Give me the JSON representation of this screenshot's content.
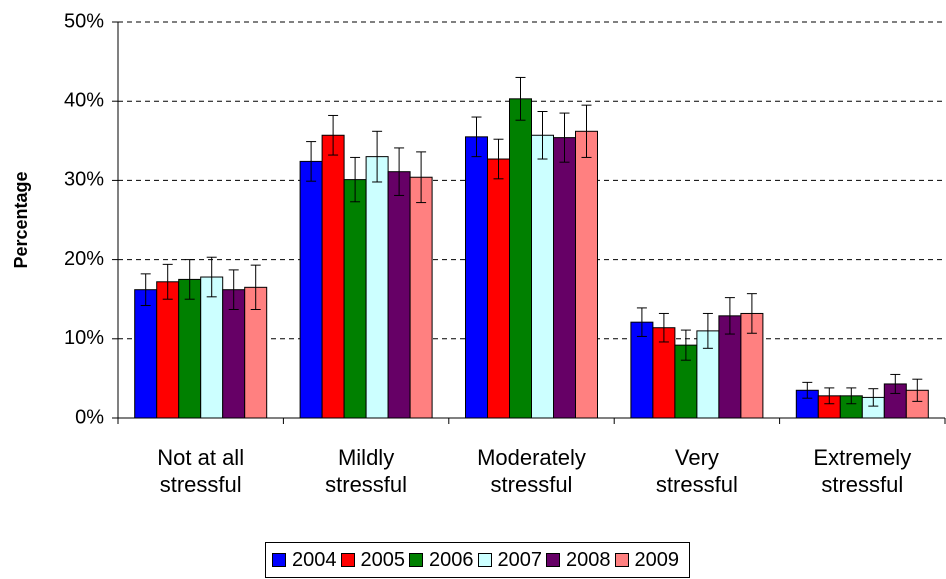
{
  "chart_data": {
    "type": "bar",
    "y_label": "Percentage",
    "categories": [
      "Not at all stressful",
      "Mildly stressful",
      "Moderately stressful",
      "Very stressful",
      "Extremely stressful"
    ],
    "series": [
      {
        "name": "2004",
        "color": "#0000ff",
        "values": [
          16.2,
          32.4,
          35.5,
          12.1,
          3.5
        ],
        "errors": [
          2.0,
          2.5,
          2.5,
          1.8,
          1.0
        ]
      },
      {
        "name": "2005",
        "color": "#ff0000",
        "values": [
          17.2,
          35.7,
          32.7,
          11.4,
          2.8
        ],
        "errors": [
          2.2,
          2.5,
          2.5,
          1.8,
          1.0
        ]
      },
      {
        "name": "2006",
        "color": "#008000",
        "values": [
          17.5,
          30.1,
          40.3,
          9.2,
          2.8
        ],
        "errors": [
          2.5,
          2.8,
          2.7,
          1.9,
          1.0
        ]
      },
      {
        "name": "2007",
        "color": "#ccffff",
        "values": [
          17.8,
          33.0,
          35.7,
          11.0,
          2.6
        ],
        "errors": [
          2.5,
          3.2,
          3.0,
          2.2,
          1.1
        ]
      },
      {
        "name": "2008",
        "color": "#660066",
        "values": [
          16.2,
          31.1,
          35.4,
          12.9,
          4.3
        ],
        "errors": [
          2.5,
          3.0,
          3.1,
          2.3,
          1.2
        ]
      },
      {
        "name": "2009",
        "color": "#ff8080",
        "values": [
          16.5,
          30.4,
          36.2,
          13.2,
          3.5
        ],
        "errors": [
          2.8,
          3.2,
          3.3,
          2.5,
          1.4
        ]
      }
    ],
    "ylim": [
      0,
      50
    ],
    "yticks": [
      {
        "value": 0,
        "label": "0%"
      },
      {
        "value": 10,
        "label": "10%"
      },
      {
        "value": 20,
        "label": "20%"
      },
      {
        "value": 30,
        "label": "30%"
      },
      {
        "value": 40,
        "label": "40%"
      },
      {
        "value": 50,
        "label": "50%"
      }
    ],
    "grid": true
  }
}
